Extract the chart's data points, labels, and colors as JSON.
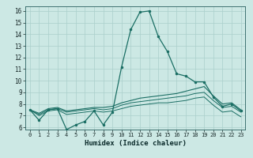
{
  "title": "",
  "xlabel": "Humidex (Indice chaleur)",
  "bg_color": "#cce8e4",
  "line_color": "#1a6e64",
  "grid_color": "#aacfcb",
  "xlim": [
    -0.5,
    23.5
  ],
  "ylim": [
    5.8,
    16.4
  ],
  "xticks": [
    0,
    1,
    2,
    3,
    4,
    5,
    6,
    7,
    8,
    9,
    10,
    11,
    12,
    13,
    14,
    15,
    16,
    17,
    18,
    19,
    20,
    21,
    22,
    23
  ],
  "yticks": [
    6,
    7,
    8,
    9,
    10,
    11,
    12,
    13,
    14,
    15,
    16
  ],
  "line1_x": [
    0,
    1,
    2,
    3,
    4,
    5,
    6,
    7,
    8,
    9,
    10,
    11,
    12,
    13,
    14,
    15,
    16,
    17,
    18,
    19,
    20,
    21,
    22,
    23
  ],
  "line1_y": [
    7.5,
    6.6,
    7.5,
    7.6,
    5.8,
    6.2,
    6.5,
    7.4,
    6.2,
    7.3,
    11.2,
    14.4,
    15.9,
    16.0,
    13.8,
    12.5,
    10.6,
    10.4,
    9.9,
    9.9,
    8.6,
    7.8,
    8.0,
    7.4
  ],
  "line2_x": [
    0,
    1,
    2,
    3,
    4,
    5,
    6,
    7,
    8,
    9,
    10,
    11,
    12,
    13,
    14,
    15,
    16,
    17,
    18,
    19,
    20,
    21,
    22,
    23
  ],
  "line2_y": [
    7.5,
    7.2,
    7.6,
    7.7,
    7.4,
    7.5,
    7.6,
    7.7,
    7.7,
    7.8,
    8.1,
    8.3,
    8.5,
    8.6,
    8.7,
    8.8,
    8.9,
    9.1,
    9.3,
    9.5,
    8.7,
    8.0,
    8.1,
    7.5
  ],
  "line3_x": [
    0,
    1,
    2,
    3,
    4,
    5,
    6,
    7,
    8,
    9,
    10,
    11,
    12,
    13,
    14,
    15,
    16,
    17,
    18,
    19,
    20,
    21,
    22,
    23
  ],
  "line3_y": [
    7.5,
    7.1,
    7.5,
    7.6,
    7.3,
    7.4,
    7.5,
    7.6,
    7.5,
    7.6,
    7.9,
    8.1,
    8.2,
    8.3,
    8.4,
    8.5,
    8.6,
    8.7,
    8.9,
    9.0,
    8.3,
    7.7,
    7.8,
    7.3
  ],
  "line4_x": [
    0,
    1,
    2,
    3,
    4,
    5,
    6,
    7,
    8,
    9,
    10,
    11,
    12,
    13,
    14,
    15,
    16,
    17,
    18,
    19,
    20,
    21,
    22,
    23
  ],
  "line4_y": [
    7.5,
    7.0,
    7.4,
    7.5,
    7.1,
    7.2,
    7.3,
    7.4,
    7.3,
    7.4,
    7.6,
    7.8,
    7.9,
    8.0,
    8.1,
    8.1,
    8.2,
    8.3,
    8.5,
    8.6,
    7.9,
    7.3,
    7.4,
    6.9
  ]
}
